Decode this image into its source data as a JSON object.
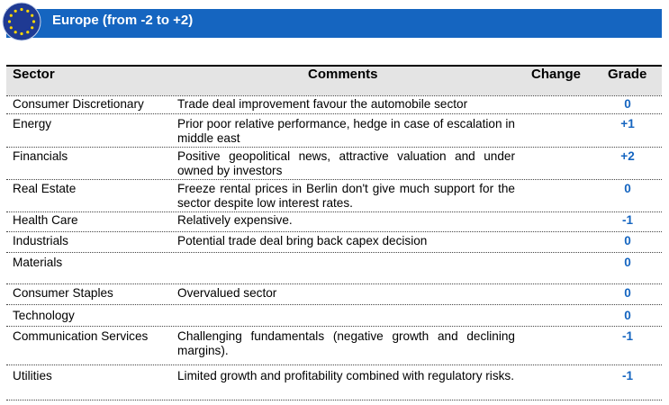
{
  "header": {
    "title": "Europe (from  -2 to +2)"
  },
  "table": {
    "columns": {
      "sector": "Sector",
      "comments": "Comments",
      "change": "Change",
      "grade": "Grade"
    },
    "rows": [
      {
        "sector": "Consumer Discretionary",
        "comment": "Trade deal improvement favour the automobile sector",
        "change": "",
        "grade": "0"
      },
      {
        "sector": "Energy",
        "comment": "Prior poor relative performance, hedge in case of escalation in middle east",
        "change": "",
        "grade": "+1"
      },
      {
        "sector": "Financials",
        "comment": "Positive geopolitical news, attractive valuation and under owned by investors",
        "change": "",
        "grade": "+2"
      },
      {
        "sector": "Real Estate",
        "comment": "Freeze rental prices in Berlin don't give much support for the sector despite low interest rates.",
        "change": "",
        "grade": "0"
      },
      {
        "sector": "Health Care",
        "comment": "Relatively expensive.",
        "change": "",
        "grade": "-1"
      },
      {
        "sector": "Industrials",
        "comment": "Potential trade deal bring back capex decision",
        "change": "",
        "grade": "0"
      },
      {
        "sector": "Materials",
        "comment": "",
        "change": "",
        "grade": "0"
      },
      {
        "sector": "Consumer Staples",
        "comment": "Overvalued sector",
        "change": "",
        "grade": "0"
      },
      {
        "sector": "Technology",
        "comment": "",
        "change": "",
        "grade": "0"
      },
      {
        "sector": "Communication Services",
        "comment": "Challenging fundamentals (negative growth and declining margins).",
        "change": "",
        "grade": "-1"
      },
      {
        "sector": "Utilities",
        "comment": "Limited growth and profitability combined with regulatory risks.",
        "change": "",
        "grade": "-1"
      }
    ]
  },
  "colors": {
    "banner": "#1565c0",
    "grade_text": "#1565c0",
    "header_bg": "#e4e4e4"
  },
  "icons": {
    "flag": "eu-flag-icon"
  }
}
